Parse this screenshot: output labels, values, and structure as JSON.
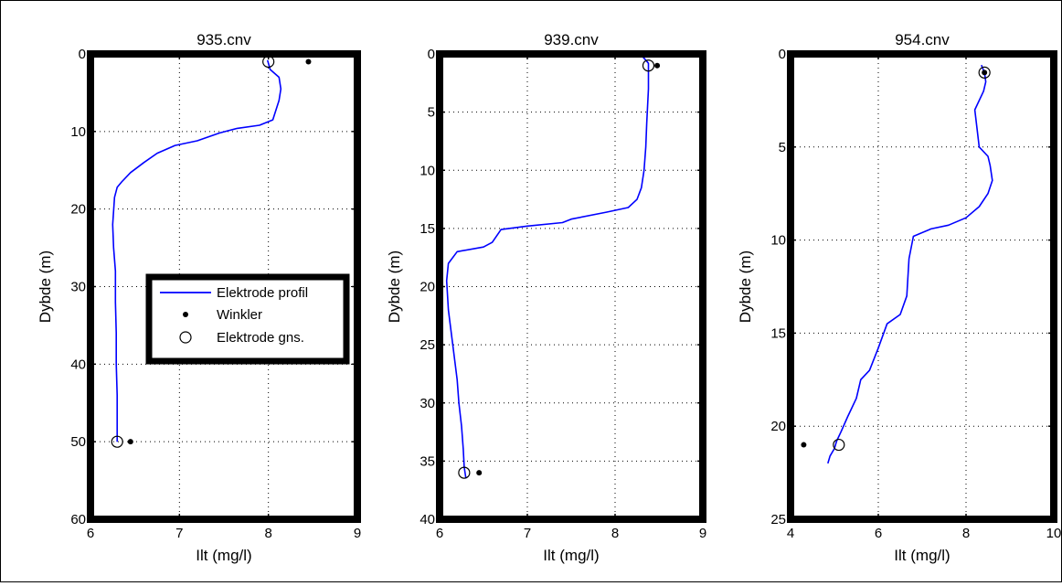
{
  "chart_data": [
    {
      "type": "line",
      "title": "935.cnv",
      "xlabel": "Ilt (mg/l)",
      "ylabel": "Dybde (m)",
      "xlim": [
        6,
        9
      ],
      "ylim": [
        0,
        60
      ],
      "y_reversed": true,
      "xticks": [
        6,
        7,
        8,
        9
      ],
      "yticks": [
        0,
        10,
        20,
        30,
        40,
        50,
        60
      ],
      "grid": true,
      "legend": {
        "placement": "middle-right",
        "entries": [
          "Elektrode profil",
          "Winkler",
          "Elektrode gns."
        ]
      },
      "series": [
        {
          "name": "Elektrode profil",
          "style": "line",
          "color": "#0000ff",
          "x": [
            7.99,
            8.02,
            8.12,
            8.14,
            8.12,
            8.05,
            7.9,
            7.65,
            7.45,
            7.2,
            6.95,
            6.75,
            6.6,
            6.45,
            6.35,
            6.3,
            6.27,
            6.25,
            6.26,
            6.28,
            6.28,
            6.29,
            6.29,
            6.3,
            6.3,
            6.3
          ],
          "y": [
            0.8,
            2,
            3,
            4.5,
            6,
            8.5,
            9.2,
            9.6,
            10.2,
            11.2,
            11.8,
            12.8,
            14,
            15.3,
            16.5,
            17.2,
            18.5,
            22,
            25,
            28,
            32,
            36,
            40,
            44,
            48,
            50
          ]
        },
        {
          "name": "Winkler",
          "style": "point",
          "color": "#000000",
          "x": [
            8.45,
            6.45
          ],
          "y": [
            1,
            50
          ]
        },
        {
          "name": "Elektrode gns.",
          "style": "circle",
          "color": "#000000",
          "x": [
            8.0,
            6.3
          ],
          "y": [
            1,
            50
          ]
        }
      ]
    },
    {
      "type": "line",
      "title": "939.cnv",
      "xlabel": "Ilt (mg/l)",
      "ylabel": "Dybde (m)",
      "xlim": [
        6,
        9
      ],
      "ylim": [
        0,
        40
      ],
      "y_reversed": true,
      "xticks": [
        6,
        7,
        8,
        9
      ],
      "yticks": [
        0,
        5,
        10,
        15,
        20,
        25,
        30,
        35,
        40
      ],
      "grid": true,
      "series": [
        {
          "name": "Elektrode profil",
          "style": "line",
          "color": "#0000ff",
          "x": [
            8.05,
            8.3,
            8.38,
            8.38,
            8.36,
            8.35,
            8.33,
            8.3,
            8.25,
            8.15,
            7.9,
            7.5,
            7.4,
            7.0,
            6.7,
            6.6,
            6.5,
            6.2,
            6.1,
            6.08,
            6.1,
            6.15,
            6.2,
            6.22,
            6.25,
            6.27,
            6.28,
            6.3
          ],
          "y": [
            0,
            0.1,
            0.8,
            3,
            6,
            8,
            10,
            11.5,
            12.5,
            13.2,
            13.6,
            14.2,
            14.5,
            14.8,
            15.1,
            16.2,
            16.6,
            17,
            18,
            19.5,
            22,
            25,
            28,
            30,
            32,
            34,
            35.5,
            36.5
          ]
        },
        {
          "name": "Winkler",
          "style": "point",
          "color": "#000000",
          "x": [
            8.48,
            6.45
          ],
          "y": [
            1,
            36
          ]
        },
        {
          "name": "Elektrode gns.",
          "style": "circle",
          "color": "#000000",
          "x": [
            8.38,
            6.28
          ],
          "y": [
            1,
            36
          ]
        }
      ]
    },
    {
      "type": "line",
      "title": "954.cnv",
      "xlabel": "Ilt (mg/l)",
      "ylabel": "Dybde (m)",
      "xlim": [
        4,
        10
      ],
      "ylim": [
        0,
        25
      ],
      "y_reversed": true,
      "xticks": [
        4,
        6,
        8,
        10
      ],
      "yticks": [
        0,
        5,
        10,
        15,
        20,
        25
      ],
      "grid": true,
      "series": [
        {
          "name": "Elektrode profil",
          "style": "line",
          "color": "#0000ff",
          "x": [
            8.35,
            8.42,
            8.45,
            8.4,
            8.2,
            8.25,
            8.3,
            8.5,
            8.55,
            8.6,
            8.5,
            8.3,
            8.0,
            7.6,
            7.2,
            6.8,
            6.7,
            6.65,
            6.5,
            6.2,
            6.0,
            5.8,
            5.6,
            5.5,
            5.3,
            5.15,
            5.05,
            5.0,
            4.9,
            4.85
          ],
          "y": [
            0.6,
            1,
            1.5,
            2,
            3,
            4,
            5,
            5.5,
            6,
            6.8,
            7.5,
            8.2,
            8.8,
            9.2,
            9.4,
            9.8,
            11,
            13,
            14,
            14.5,
            15.8,
            17,
            17.5,
            18.5,
            19.5,
            20.3,
            20.8,
            21.2,
            21.6,
            22
          ]
        },
        {
          "name": "Winkler",
          "style": "point",
          "color": "#000000",
          "x": [
            8.42,
            4.3
          ],
          "y": [
            1,
            21
          ]
        },
        {
          "name": "Elektrode gns.",
          "style": "circle",
          "color": "#000000",
          "x": [
            8.42,
            5.1
          ],
          "y": [
            1,
            21
          ]
        }
      ]
    }
  ]
}
